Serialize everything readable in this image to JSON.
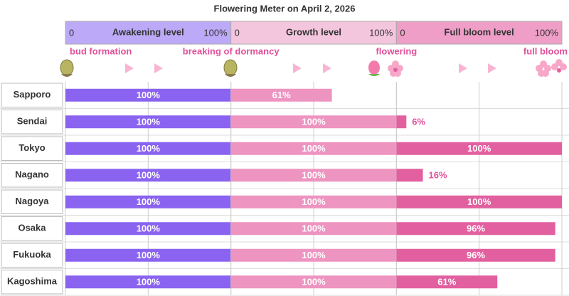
{
  "chart_data": {
    "type": "bar",
    "title": "Flowering Meter  on  April 2, 2026",
    "categories": [
      "Sapporo",
      "Sendai",
      "Tokyo",
      "Nagano",
      "Nagoya",
      "Osaka",
      "Fukuoka",
      "Kagoshima"
    ],
    "milestones": [
      "bud formation",
      "breaking of dormancy",
      "flowering",
      "full bloom"
    ],
    "xgrid": [
      0,
      50,
      100
    ],
    "series": [
      {
        "name": "Awakening level",
        "color": "#8a63f0",
        "header_color": "#bcaaf8",
        "xlim": [
          0,
          100
        ],
        "xticks": [
          {
            "value": 0,
            "label": "0"
          },
          {
            "value": 100,
            "label": "100%"
          }
        ],
        "values": [
          100,
          100,
          100,
          100,
          100,
          100,
          100,
          100
        ],
        "value_labels": [
          "100%",
          "100%",
          "100%",
          "100%",
          "100%",
          "100%",
          "100%",
          "100%"
        ]
      },
      {
        "name": "Growth level",
        "color": "#ee94c0",
        "header_color": "#f4c6de",
        "xlim": [
          0,
          100
        ],
        "xticks": [
          {
            "value": 0,
            "label": "0"
          },
          {
            "value": 100,
            "label": "100%"
          }
        ],
        "values": [
          61,
          100,
          100,
          100,
          100,
          100,
          100,
          100
        ],
        "value_labels": [
          "61%",
          "100%",
          "100%",
          "100%",
          "100%",
          "100%",
          "100%",
          "100%"
        ]
      },
      {
        "name": "Full bloom level",
        "color": "#e2609f",
        "header_color": "#ef9fc7",
        "xlim": [
          0,
          100
        ],
        "xticks": [
          {
            "value": 0,
            "label": "0"
          },
          {
            "value": 100,
            "label": "100%"
          }
        ],
        "values": [
          null,
          6,
          100,
          16,
          100,
          96,
          96,
          61
        ],
        "value_labels": [
          null,
          "6%",
          "100%",
          "16%",
          "100%",
          "96%",
          "96%",
          "61%"
        ]
      }
    ]
  }
}
